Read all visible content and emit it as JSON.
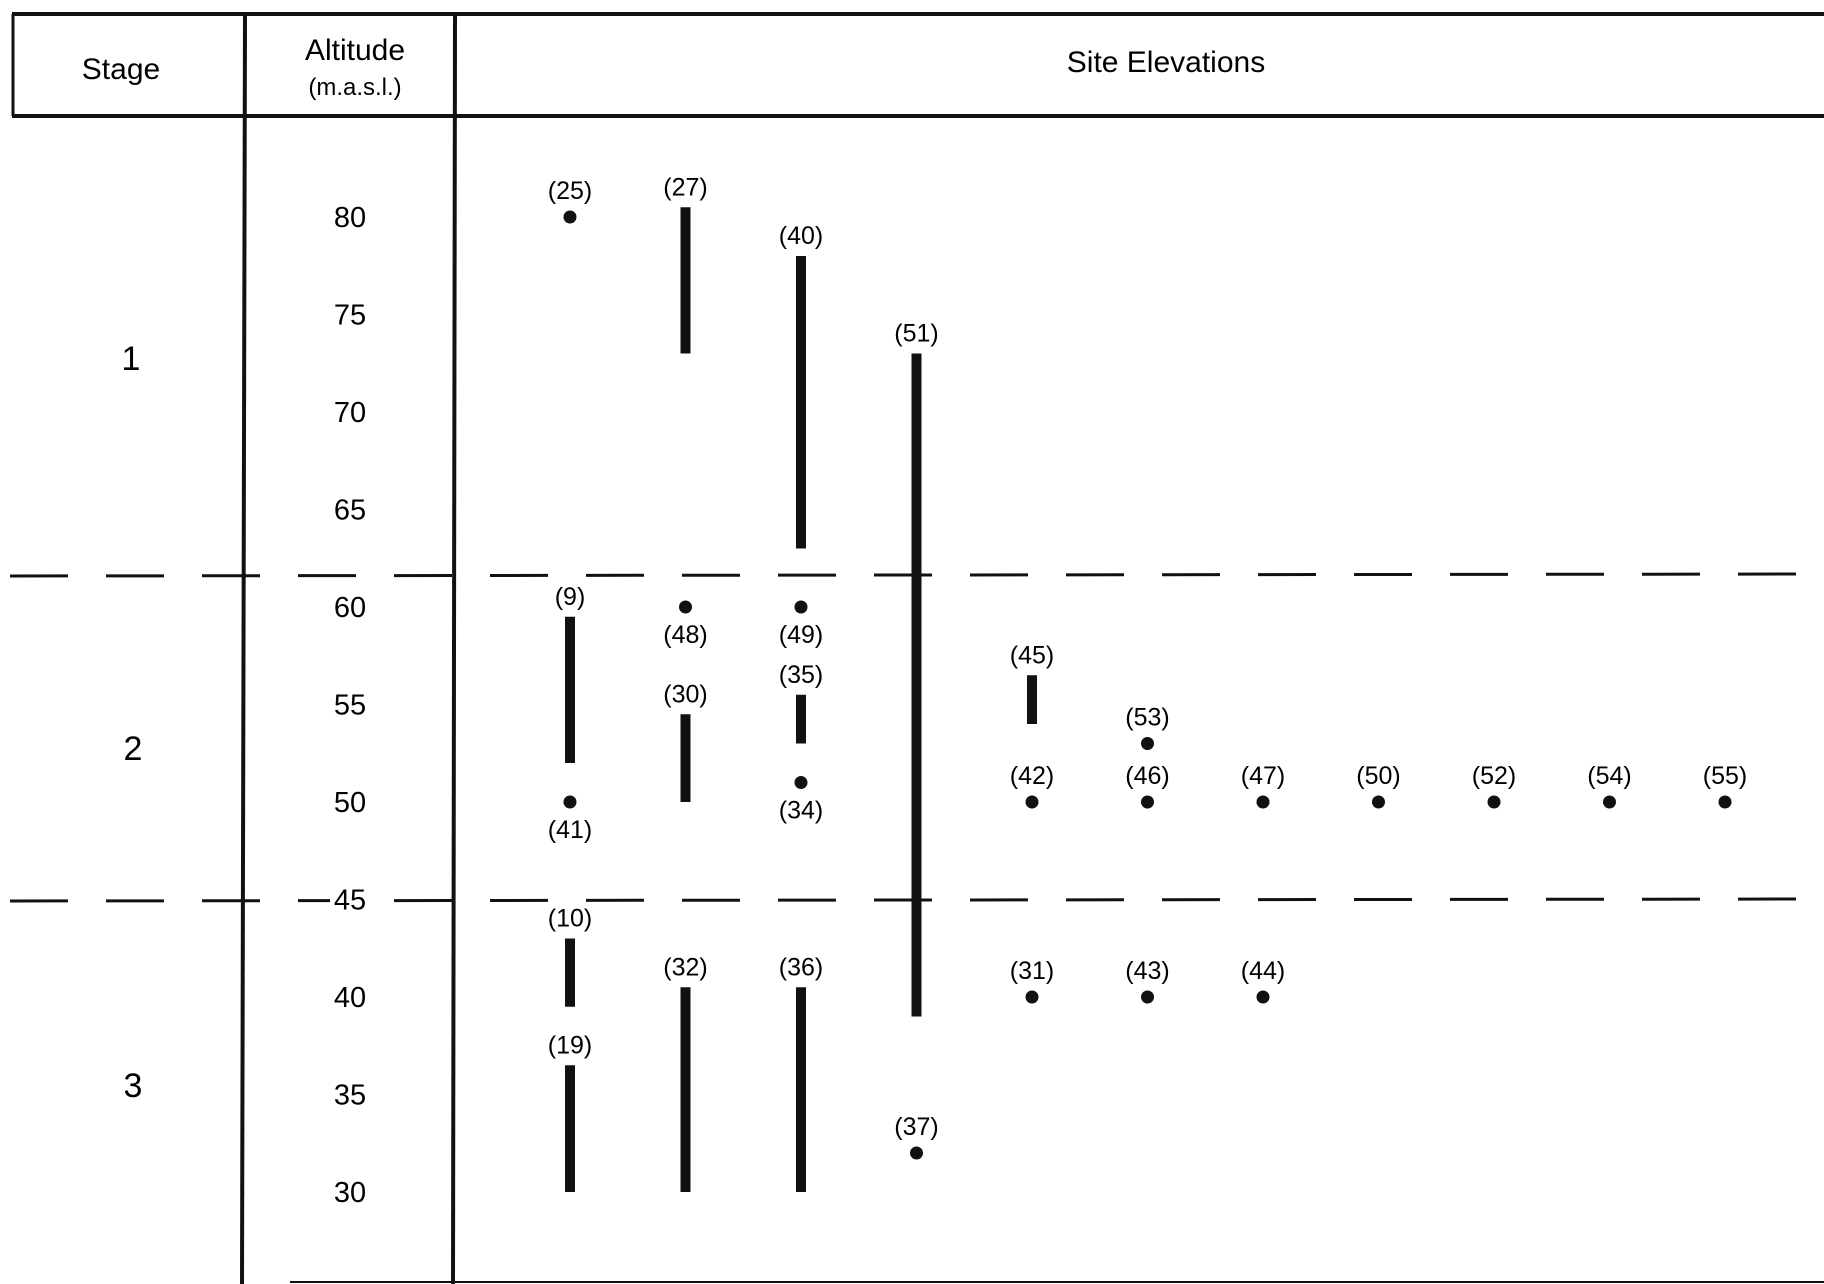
{
  "header": {
    "stage": "Stage",
    "altitude": "Altitude",
    "altitude_unit": "(m.a.s.l.)",
    "elevations": "Site Elevations"
  },
  "stages": [
    "1",
    "2",
    "3"
  ],
  "chart_data": {
    "type": "range",
    "ylabel": "Altitude (m.a.s.l.)",
    "ylim": [
      25,
      85
    ],
    "y_ticks": [
      80,
      75,
      70,
      65,
      60,
      55,
      50,
      45,
      40,
      35,
      30
    ],
    "stage_boundaries": [
      62,
      45
    ],
    "stages": [
      {
        "label": "1",
        "from": 85,
        "to": 62
      },
      {
        "label": "2",
        "from": 62,
        "to": 45
      },
      {
        "label": "3",
        "from": 45,
        "to": 25
      }
    ],
    "sites": [
      {
        "label": "(25)",
        "column": 1,
        "kind": "point",
        "y": 80
      },
      {
        "label": "(27)",
        "column": 2,
        "kind": "range",
        "y_top": 80.5,
        "y_bottom": 73
      },
      {
        "label": "(40)",
        "column": 3,
        "kind": "range",
        "y_top": 78,
        "y_bottom": 63
      },
      {
        "label": "(51)",
        "column": 4,
        "kind": "range",
        "y_top": 73,
        "y_bottom": 39
      },
      {
        "label": "(9)",
        "column": 1,
        "kind": "range",
        "y_top": 59.5,
        "y_bottom": 52
      },
      {
        "label": "(41)",
        "column": 1,
        "kind": "point",
        "y": 50
      },
      {
        "label": "(48)",
        "column": 2,
        "kind": "point",
        "y": 60
      },
      {
        "label": "(30)",
        "column": 2,
        "kind": "range",
        "y_top": 54.5,
        "y_bottom": 50
      },
      {
        "label": "(49)",
        "column": 3,
        "kind": "point",
        "y": 60
      },
      {
        "label": "(35)",
        "column": 3,
        "kind": "range",
        "y_top": 55.5,
        "y_bottom": 53
      },
      {
        "label": "(34)",
        "column": 3,
        "kind": "point",
        "y": 51
      },
      {
        "label": "(45)",
        "column": 5,
        "kind": "range",
        "y_top": 56.5,
        "y_bottom": 54
      },
      {
        "label": "(42)",
        "column": 5,
        "kind": "point",
        "y": 50
      },
      {
        "label": "(53)",
        "column": 6,
        "kind": "point",
        "y": 53
      },
      {
        "label": "(46)",
        "column": 6,
        "kind": "point",
        "y": 50
      },
      {
        "label": "(47)",
        "column": 7,
        "kind": "point",
        "y": 50
      },
      {
        "label": "(50)",
        "column": 8,
        "kind": "point",
        "y": 50
      },
      {
        "label": "(52)",
        "column": 9,
        "kind": "point",
        "y": 50
      },
      {
        "label": "(54)",
        "column": 10,
        "kind": "point",
        "y": 50
      },
      {
        "label": "(55)",
        "column": 11,
        "kind": "point",
        "y": 50
      },
      {
        "label": "(10)",
        "column": 1,
        "kind": "range",
        "y_top": 43,
        "y_bottom": 39.5
      },
      {
        "label": "(19)",
        "column": 1,
        "kind": "range",
        "y_top": 36.5,
        "y_bottom": 30
      },
      {
        "label": "(32)",
        "column": 2,
        "kind": "range",
        "y_top": 40.5,
        "y_bottom": 30
      },
      {
        "label": "(36)",
        "column": 3,
        "kind": "range",
        "y_top": 40.5,
        "y_bottom": 30
      },
      {
        "label": "(37)",
        "column": 4,
        "kind": "point",
        "y": 32
      },
      {
        "label": "(31)",
        "column": 5,
        "kind": "point",
        "y": 40
      },
      {
        "label": "(43)",
        "column": 6,
        "kind": "point",
        "y": 40
      },
      {
        "label": "(44)",
        "column": 7,
        "kind": "point",
        "y": 40
      }
    ]
  }
}
